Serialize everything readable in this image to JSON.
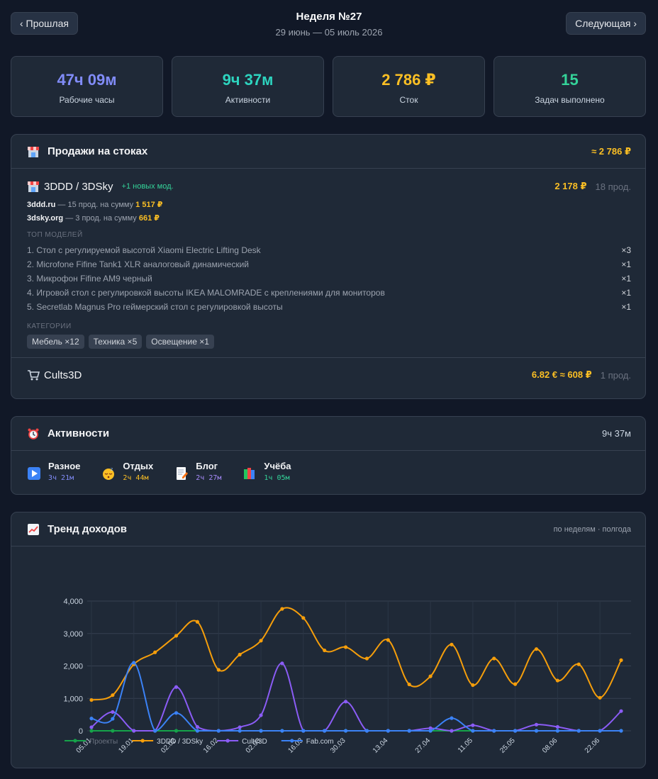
{
  "nav": {
    "prev_label": "‹ Прошлая",
    "next_label": "Следующая ›",
    "week_title": "Неделя №27",
    "week_range": "29 июнь — 05 июль 2026"
  },
  "stats": [
    {
      "value": "47ч 09м",
      "label": "Рабочие часы",
      "color": "#818cf8"
    },
    {
      "value": "9ч 37м",
      "label": "Активности",
      "color": "#2dd4bf"
    },
    {
      "value": "2 786 ₽",
      "label": "Сток",
      "color": "#fbbf24"
    },
    {
      "value": "15",
      "label": "Задач выполнено",
      "color": "#34d399"
    }
  ],
  "sales": {
    "title": "Продажи на стоках",
    "total": "≈ 2 786 ₽",
    "store1": {
      "name": "3DDD / 3DSky",
      "new_models": "+1 новых мод.",
      "sum": "2 178 ₽",
      "count": "18 прод.",
      "site1_name": "3ddd.ru",
      "site1_text": " — 15 прод. на сумму ",
      "site1_amount": "1 517 ₽",
      "site2_name": "3dsky.org",
      "site2_text": " — 3 прод. на сумму ",
      "site2_amount": "661 ₽",
      "top_caption": "ТОП МОДЕЛЕЙ",
      "models": [
        {
          "name": "1. Стол с регулируемой высотой Xiaomi Electric Lifting Desk",
          "mult": "×3"
        },
        {
          "name": "2. Microfone Fifine Tank1 XLR аналоговый динамический",
          "mult": "×1"
        },
        {
          "name": "3. Микрофон Fifine AM9 черный",
          "mult": "×1"
        },
        {
          "name": "4. Игровой стол с регулировкой высоты IKEA MALOMRADE с креплениями для мониторов",
          "mult": "×1"
        },
        {
          "name": "5. Secretlab Magnus Pro геймерский стол с регулировкой высоты",
          "mult": "×1"
        }
      ],
      "cat_caption": "КАТЕГОРИИ",
      "categories": [
        "Мебель  ×12",
        "Техника  ×5",
        "Освещение  ×1"
      ]
    },
    "store2": {
      "name": "Cults3D",
      "sum": "6.82 € ≈ 608 ₽",
      "count": "1 прод."
    }
  },
  "activities": {
    "title": "Активности",
    "total": "9ч 37м",
    "items": [
      {
        "name": "Разное",
        "time": "3ч 21м",
        "color": "#818cf8",
        "icon": "play-icon"
      },
      {
        "name": "Отдых",
        "time": "2ч 44м",
        "color": "#fbbf24",
        "icon": "sleepy-face-icon"
      },
      {
        "name": "Блог",
        "time": "2ч 27м",
        "color": "#a78bfa",
        "icon": "memo-icon"
      },
      {
        "name": "Учёба",
        "time": "1ч 05м",
        "color": "#34d399",
        "icon": "books-icon"
      }
    ]
  },
  "trend": {
    "title": "Тренд доходов",
    "subtitle": "по неделям · полгода"
  },
  "chart_data": {
    "type": "line",
    "x": [
      "05.01",
      "12.01",
      "19.01",
      "26.01",
      "02.02",
      "09.02",
      "16.02",
      "23.02",
      "02.03",
      "09.03",
      "16.03",
      "23.03",
      "30.03",
      "06.04",
      "13.04",
      "20.04",
      "27.04",
      "04.05",
      "11.05",
      "18.05",
      "25.05",
      "01.06",
      "08.06",
      "15.06",
      "22.06",
      "29.06"
    ],
    "xtick_labels": [
      "05.01",
      "19.01",
      "02.02",
      "16.02",
      "02.03",
      "16.03",
      "30.03",
      "13.04",
      "27.04",
      "11.05",
      "25.05",
      "08.06",
      "22.06"
    ],
    "y_ticks": [
      "0",
      "1,000",
      "2,000",
      "3,000",
      "4,000"
    ],
    "ylim": [
      0,
      4000
    ],
    "grid": true,
    "legend_position": "bottom-left",
    "series": [
      {
        "name": "Проекты",
        "color": "#16a34a",
        "values": [
          0,
          0,
          0,
          0,
          0,
          0,
          0,
          0,
          0,
          0,
          0,
          0,
          0,
          0,
          0,
          0,
          0,
          0,
          0,
          0,
          0,
          0,
          0,
          0,
          0,
          0
        ]
      },
      {
        "name": "3DDD / 3DSky",
        "color": "#f59e0b",
        "values": [
          950,
          1100,
          2050,
          2420,
          2930,
          3360,
          1880,
          2350,
          2780,
          3760,
          3480,
          2480,
          2580,
          2230,
          2800,
          1430,
          1680,
          2660,
          1410,
          2230,
          1440,
          2520,
          1550,
          2050,
          1020,
          2178
        ]
      },
      {
        "name": "Cults3D",
        "color": "#8b5cf6",
        "values": [
          110,
          580,
          0,
          0,
          1350,
          120,
          0,
          110,
          480,
          2080,
          0,
          0,
          900,
          0,
          0,
          0,
          80,
          0,
          170,
          0,
          0,
          190,
          120,
          0,
          0,
          608
        ]
      },
      {
        "name": "Fab.com",
        "color": "#3b82f6",
        "values": [
          380,
          370,
          2100,
          0,
          550,
          0,
          0,
          0,
          0,
          0,
          0,
          0,
          0,
          0,
          0,
          0,
          0,
          390,
          0,
          0,
          0,
          0,
          0,
          0,
          0,
          0
        ]
      }
    ]
  }
}
